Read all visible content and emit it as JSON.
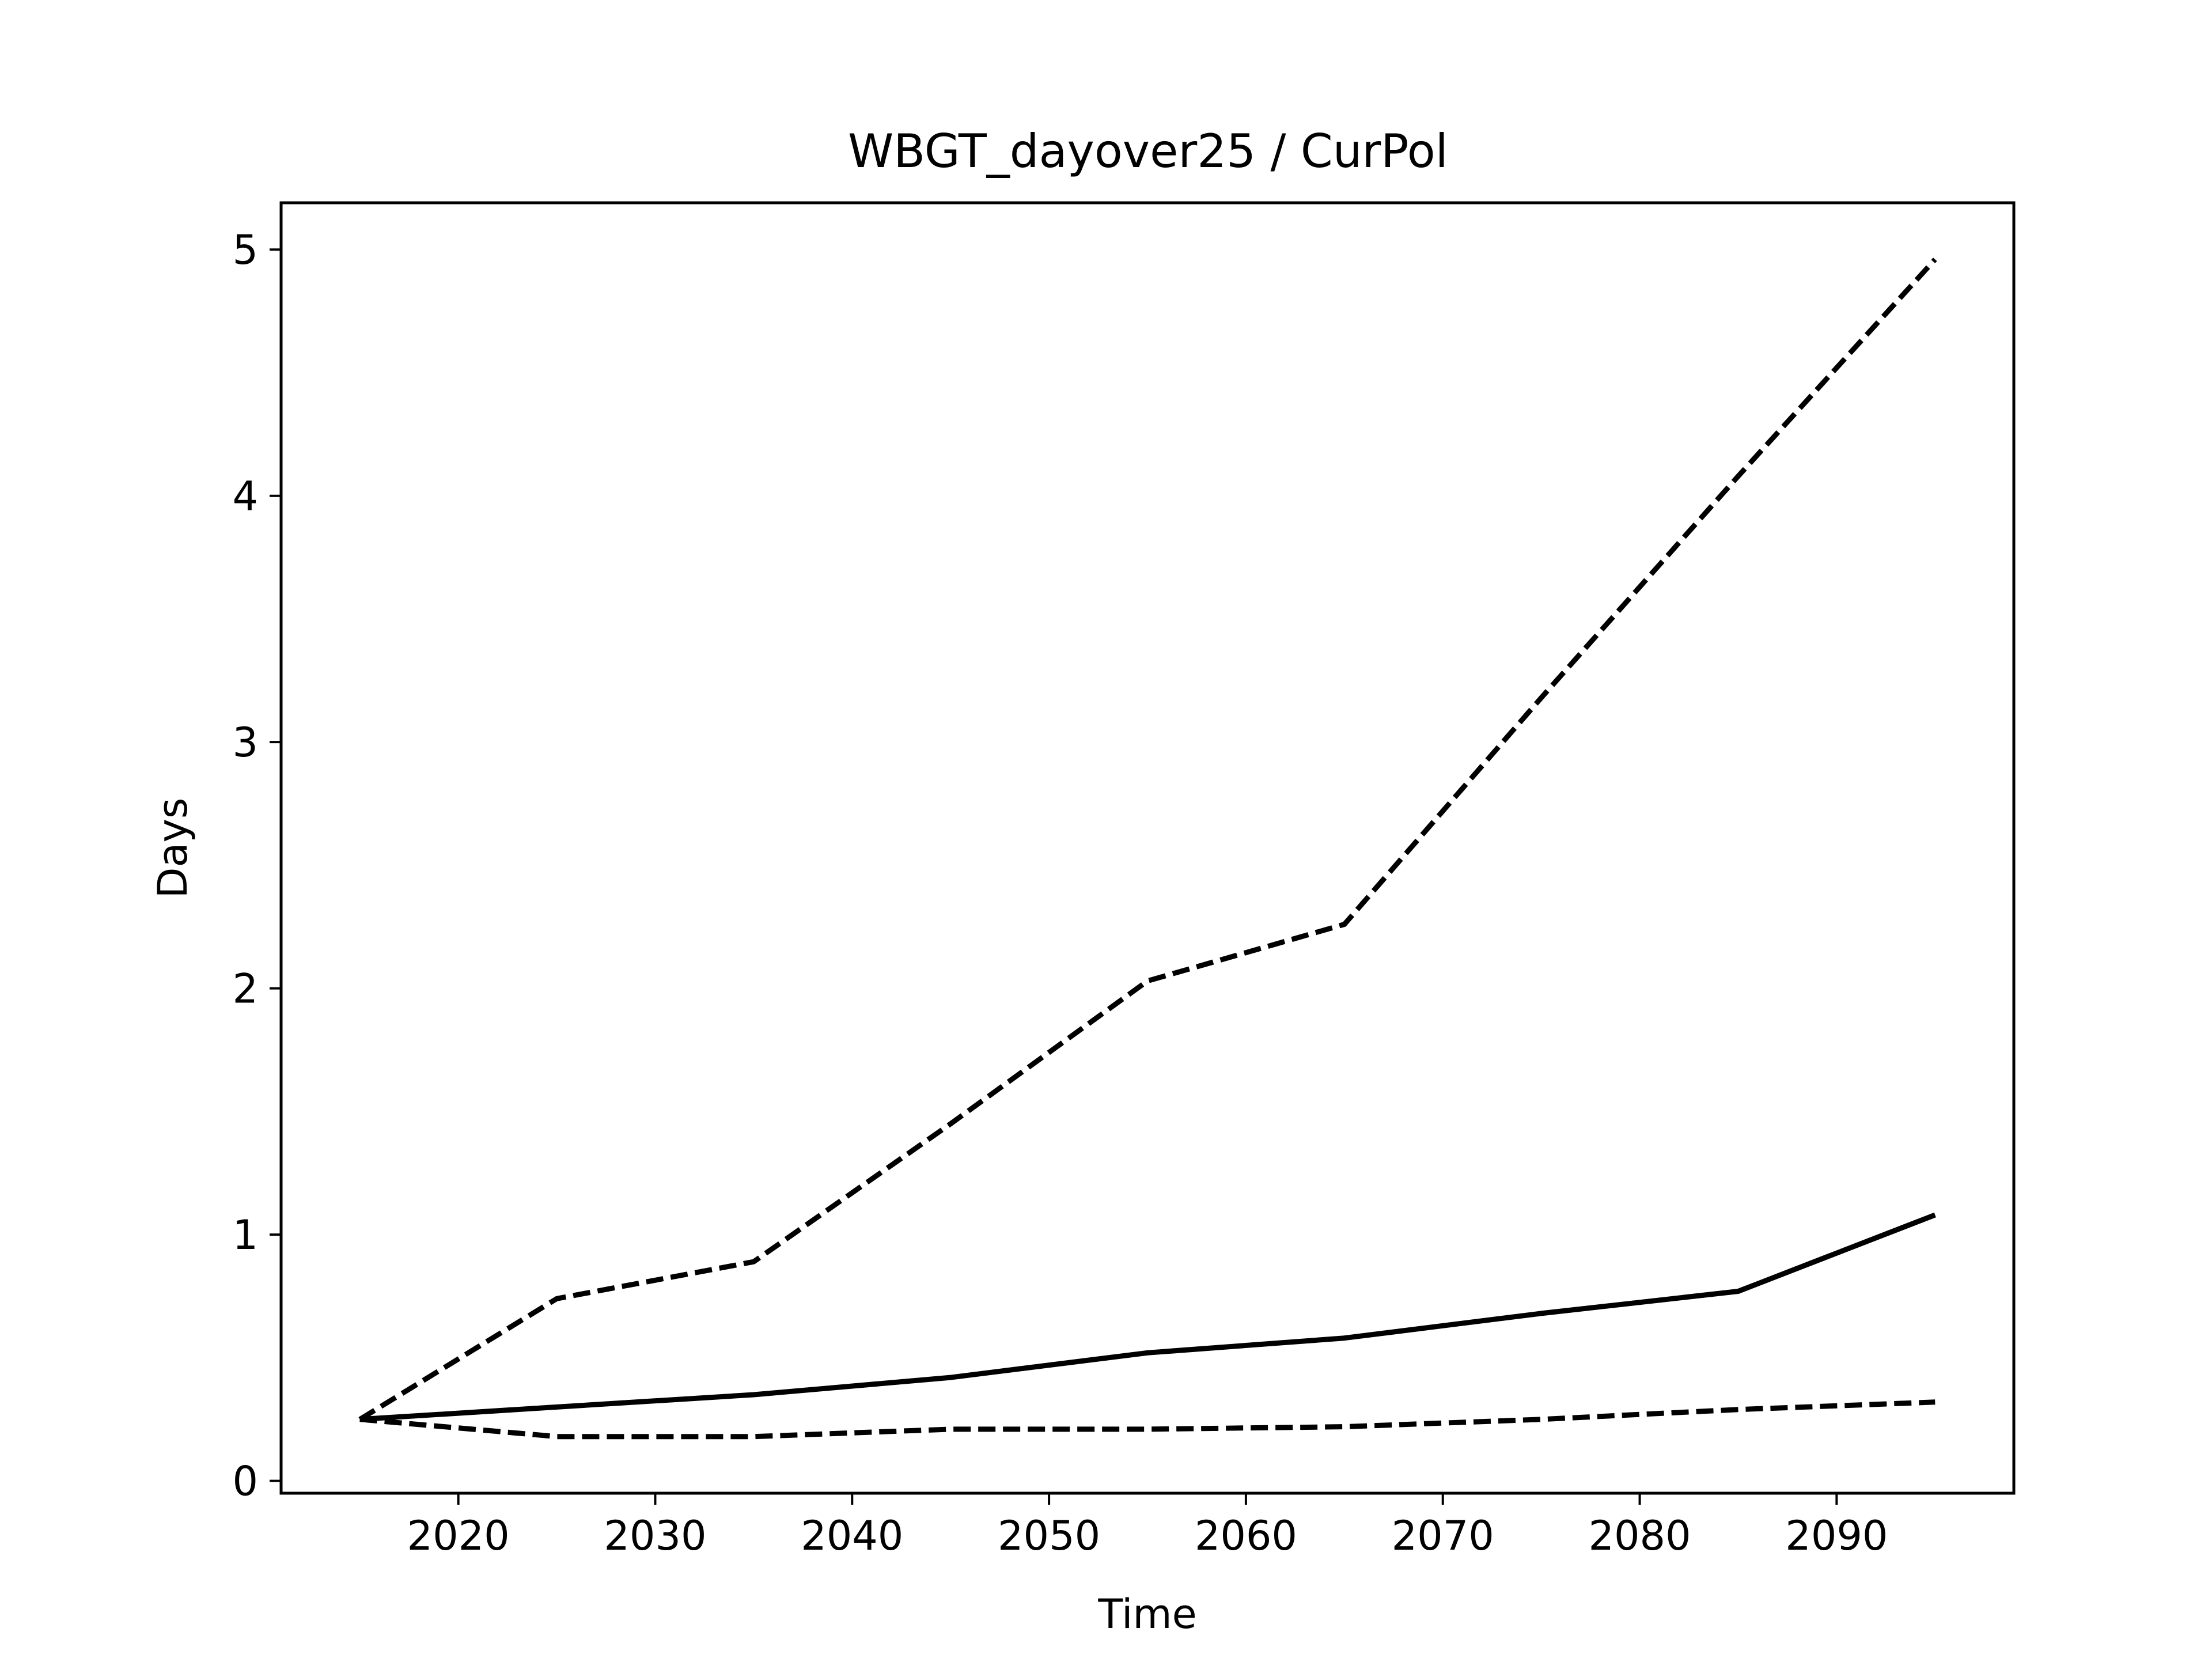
{
  "chart_data": {
    "type": "line",
    "title": "WBGT_dayover25 / CurPol",
    "xlabel": "Time",
    "ylabel": "Days",
    "xlim": [
      2011,
      2099
    ],
    "ylim": [
      -0.05,
      5.19
    ],
    "xticks": [
      2020,
      2030,
      2040,
      2050,
      2060,
      2070,
      2080,
      2090
    ],
    "yticks": [
      0,
      1,
      2,
      3,
      4,
      5
    ],
    "grid": false,
    "x": [
      2015,
      2025,
      2035,
      2045,
      2055,
      2065,
      2075,
      2085,
      2095
    ],
    "series": [
      {
        "style": "dashed",
        "color": "#000000",
        "values": [
          0.25,
          0.74,
          0.89,
          1.45,
          2.03,
          2.26,
          3.18,
          4.08,
          4.96
        ]
      },
      {
        "style": "solid",
        "color": "#000000",
        "values": [
          0.25,
          0.3,
          0.35,
          0.42,
          0.52,
          0.58,
          0.68,
          0.77,
          1.08
        ]
      },
      {
        "style": "dashed",
        "color": "#000000",
        "values": [
          0.25,
          0.18,
          0.18,
          0.21,
          0.21,
          0.22,
          0.25,
          0.29,
          0.32
        ]
      }
    ]
  }
}
